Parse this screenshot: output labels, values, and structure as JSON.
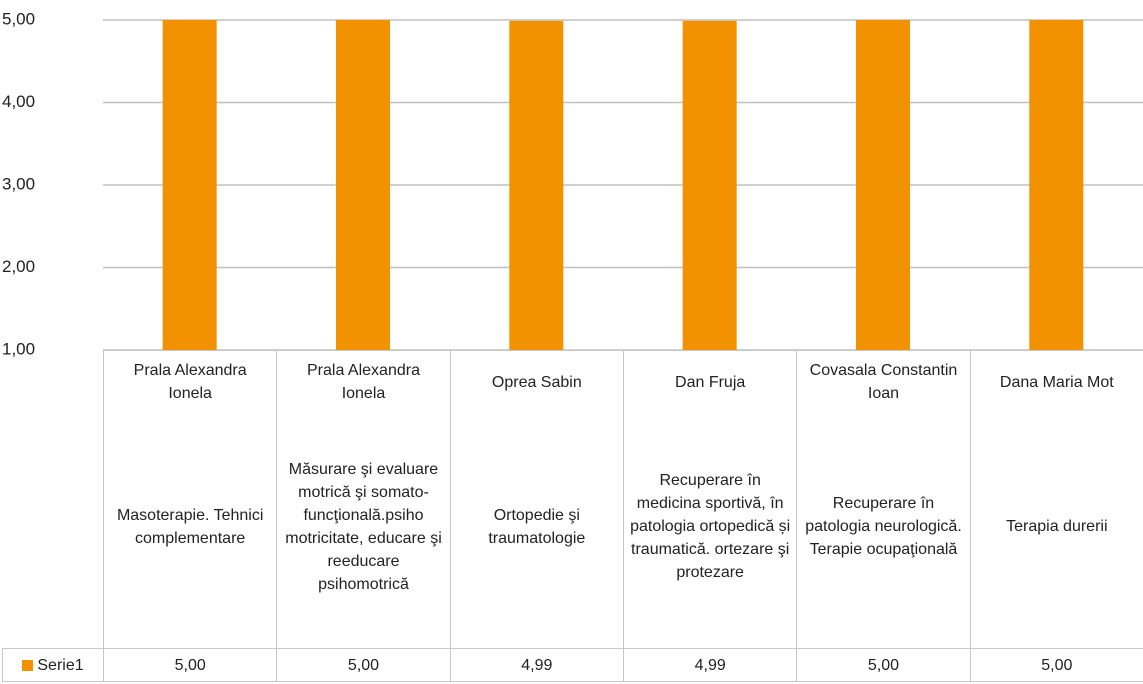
{
  "chart_data": {
    "type": "bar",
    "categories": [
      [
        "Prala Alexandra Ionela",
        "Masoterapie. Tehnici complementare"
      ],
      [
        "Prala Alexandra Ionela",
        "Măsurare şi evaluare motrică şi somato-funcţională.psiho motricitate, educare şi reeducare psihomotrică"
      ],
      [
        "Oprea Sabin",
        "Ortopedie şi traumatologie"
      ],
      [
        "Dan Fruja",
        "Recuperare în medicina sportivă, în patologia ortopedică și traumatică. ortezare şi protezare"
      ],
      [
        "Covasala Constantin Ioan",
        "Recuperare în patologia neurologică. Terapie ocupaţională"
      ],
      [
        "Dana Maria Mot",
        "Terapia durerii"
      ]
    ],
    "series": [
      {
        "name": "Serie1",
        "color": "#f39200",
        "values": [
          5.0,
          5.0,
          4.99,
          4.99,
          5.0,
          5.0
        ],
        "value_labels": [
          "5,00",
          "5,00",
          "4,99",
          "4,99",
          "5,00",
          "5,00"
        ]
      }
    ],
    "ylim": [
      1,
      5
    ],
    "yticks": [
      {
        "value": 1,
        "label": "1,00"
      },
      {
        "value": 2,
        "label": "2,00"
      },
      {
        "value": 3,
        "label": "3,00"
      },
      {
        "value": 4,
        "label": "4,00"
      },
      {
        "value": 5,
        "label": "5,00"
      }
    ],
    "grid": true
  }
}
